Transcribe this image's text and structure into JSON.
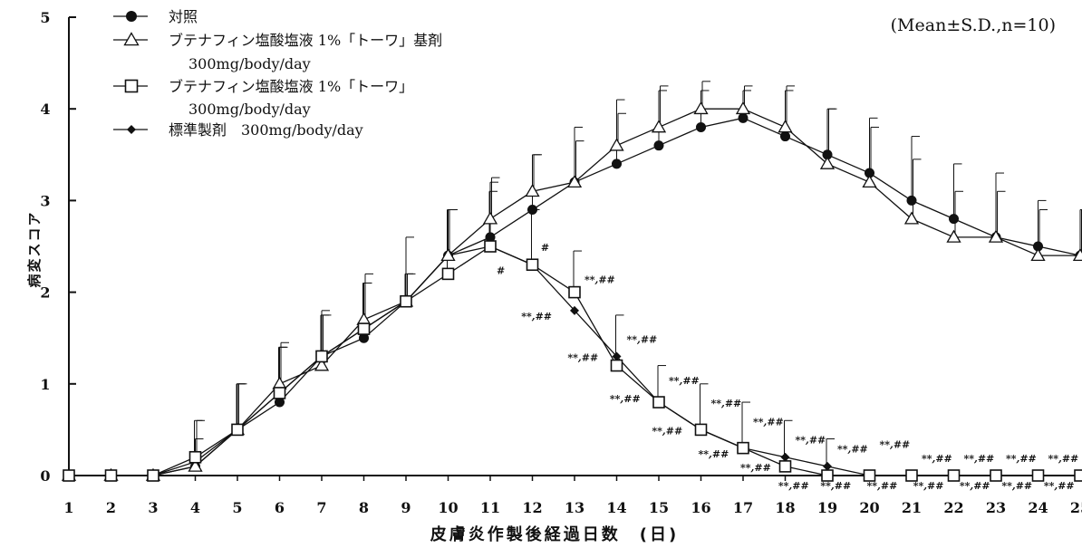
{
  "chart_data": {
    "type": "line",
    "xlabel": "皮膚炎作製後経過日数　(日)",
    "ylabel": "病変スコア",
    "annotation": "(Mean±S.D.,n=10)",
    "xlim": [
      1,
      25
    ],
    "ylim": [
      0,
      5
    ],
    "x_ticks": [
      "1",
      "2",
      "3",
      "4",
      "5",
      "6",
      "7",
      "8",
      "9",
      "10",
      "11",
      "12",
      "13",
      "14",
      "15",
      "16",
      "17",
      "18",
      "19",
      "20",
      "21",
      "22",
      "23",
      "24",
      "25"
    ],
    "y_ticks": [
      "0",
      "1",
      "2",
      "3",
      "4",
      "5"
    ],
    "legend_position": "top-left",
    "legend": [
      {
        "label": "対照",
        "sub": ""
      },
      {
        "label": "ブテナフィン塩酸塩液 1%「トーワ」基剤",
        "sub": "300mg/body/day"
      },
      {
        "label": "ブテナフィン塩酸塩液 1%「トーワ」",
        "sub": "300mg/body/day"
      },
      {
        "label": "標準製剤　300mg/body/day",
        "sub": ""
      }
    ],
    "series": [
      {
        "marker": "filled-circle",
        "x": [
          1,
          2,
          3,
          4,
          5,
          6,
          7,
          8,
          9,
          10,
          11,
          12,
          13,
          14,
          15,
          16,
          17,
          18,
          19,
          20,
          21,
          22,
          23,
          24,
          25
        ],
        "values": [
          0,
          0,
          0,
          0.1,
          0.5,
          0.8,
          1.3,
          1.5,
          1.9,
          2.4,
          2.6,
          2.9,
          3.2,
          3.4,
          3.6,
          3.8,
          3.9,
          3.7,
          3.5,
          3.3,
          3.0,
          2.8,
          2.6,
          2.5,
          2.4
        ],
        "sd": [
          0,
          0,
          0,
          0.3,
          0.5,
          0.6,
          0.5,
          0.6,
          0.7,
          0.5,
          0.6,
          0.6,
          0.6,
          0.7,
          0.6,
          0.4,
          0.3,
          0.5,
          0.5,
          0.6,
          0.7,
          0.6,
          0.7,
          0.5,
          0.5
        ]
      },
      {
        "marker": "open-triangle",
        "x": [
          1,
          2,
          3,
          4,
          5,
          6,
          7,
          8,
          9,
          10,
          11,
          12,
          13,
          14,
          15,
          16,
          17,
          18,
          19,
          20,
          21,
          22,
          23,
          24,
          25
        ],
        "values": [
          0,
          0,
          0,
          0.1,
          0.5,
          1.0,
          1.2,
          1.7,
          1.9,
          2.4,
          2.8,
          3.1,
          3.2,
          3.6,
          3.8,
          4.0,
          4.0,
          3.8,
          3.4,
          3.2,
          2.8,
          2.6,
          2.6,
          2.4,
          2.4
        ],
        "sd": [
          0,
          0,
          0,
          0.5,
          0.5,
          0.45,
          0.55,
          0.5,
          0.3,
          0.5,
          0.45,
          0.4,
          0.45,
          0.35,
          0.45,
          0.3,
          0.25,
          0.45,
          0.6,
          0.6,
          0.65,
          0.5,
          0.5,
          0.5,
          0.5
        ]
      },
      {
        "marker": "open-square",
        "x": [
          1,
          2,
          3,
          4,
          5,
          6,
          7,
          8,
          9,
          10,
          11,
          12,
          13,
          14,
          15,
          16,
          17,
          18,
          19,
          20,
          21,
          22,
          23,
          24,
          25
        ],
        "values": [
          0,
          0,
          0,
          0.2,
          0.5,
          0.9,
          1.3,
          1.6,
          1.9,
          2.2,
          2.5,
          2.3,
          2.0,
          1.2,
          0.8,
          0.5,
          0.3,
          0.1,
          0,
          0,
          0,
          0,
          0,
          0,
          0
        ],
        "sd": [
          0,
          0,
          0,
          0.4,
          0.5,
          0.5,
          0.45,
          0.5,
          0.3,
          0.7,
          0.6,
          0.6,
          0.45,
          0.55,
          0.4,
          0.5,
          0.5,
          0.5,
          0.4,
          0,
          0,
          0,
          0,
          0,
          0
        ]
      },
      {
        "marker": "filled-diamond",
        "x": [
          1,
          2,
          3,
          4,
          5,
          6,
          7,
          8,
          9,
          10,
          11,
          12,
          13,
          14,
          15,
          16,
          17,
          18,
          19,
          20,
          21,
          22,
          23,
          24,
          25
        ],
        "values": [
          0,
          0,
          0,
          0.15,
          0.5,
          0.9,
          1.3,
          1.6,
          1.9,
          2.4,
          2.5,
          2.3,
          1.8,
          1.3,
          0.8,
          0.5,
          0.3,
          0.2,
          0.1,
          0,
          0,
          0,
          0,
          0,
          0
        ],
        "sd": []
      }
    ],
    "significance": [
      {
        "x": 11.25,
        "y": 2.2,
        "text": "#"
      },
      {
        "x": 12.3,
        "y": 2.45,
        "text": "#"
      },
      {
        "x": 12.1,
        "y": 1.7,
        "text": "**,##"
      },
      {
        "x": 13.6,
        "y": 2.1,
        "text": "**,##"
      },
      {
        "x": 13.2,
        "y": 1.25,
        "text": "**,##"
      },
      {
        "x": 14.6,
        "y": 1.45,
        "text": "**,##"
      },
      {
        "x": 14.2,
        "y": 0.8,
        "text": "**,##"
      },
      {
        "x": 15.6,
        "y": 1.0,
        "text": "**,##"
      },
      {
        "x": 15.2,
        "y": 0.45,
        "text": "**,##"
      },
      {
        "x": 16.6,
        "y": 0.75,
        "text": "**,##"
      },
      {
        "x": 16.3,
        "y": 0.2,
        "text": "**,##"
      },
      {
        "x": 17.6,
        "y": 0.55,
        "text": "**,##"
      },
      {
        "x": 17.3,
        "y": 0.05,
        "text": "**,##"
      },
      {
        "x": 18.6,
        "y": 0.35,
        "text": "**,##"
      },
      {
        "x": 18.2,
        "y": -0.15,
        "text": "**,##"
      },
      {
        "x": 19.6,
        "y": 0.25,
        "text": "**,##"
      },
      {
        "x": 19.2,
        "y": -0.15,
        "text": "**,##"
      },
      {
        "x": 20.6,
        "y": 0.3,
        "text": "**,##"
      },
      {
        "x": 20.3,
        "y": -0.15,
        "text": "**,##"
      },
      {
        "x": 21.6,
        "y": 0.15,
        "text": "**,##"
      },
      {
        "x": 21.4,
        "y": -0.15,
        "text": "**,##"
      },
      {
        "x": 22.6,
        "y": 0.15,
        "text": "**,##"
      },
      {
        "x": 22.5,
        "y": -0.15,
        "text": "**,##"
      },
      {
        "x": 23.6,
        "y": 0.15,
        "text": "**,##"
      },
      {
        "x": 23.5,
        "y": -0.15,
        "text": "**,##"
      },
      {
        "x": 24.6,
        "y": 0.15,
        "text": "**,##"
      },
      {
        "x": 24.5,
        "y": -0.15,
        "text": "**,##"
      },
      {
        "x": 25.6,
        "y": 0.15,
        "text": "**,##"
      },
      {
        "x": 25.5,
        "y": -0.1,
        "text": "**,##"
      }
    ]
  }
}
